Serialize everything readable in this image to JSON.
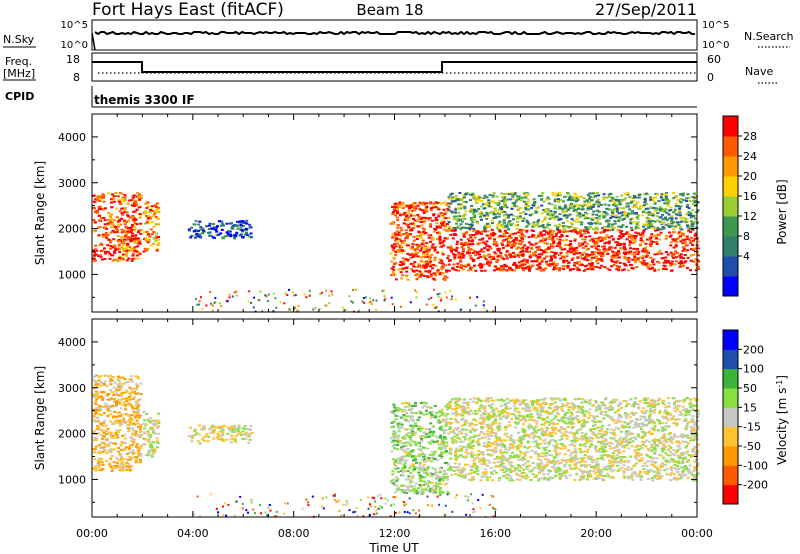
{
  "header": {
    "station": "Fort Hays East (fitACF)",
    "beam": "Beam 18",
    "date": "27/Sep/2011"
  },
  "top_strips": {
    "nsky_label": "N.Sky",
    "nsearch_label": "N.Search",
    "noise_ticks": [
      "10^5",
      "10^0"
    ],
    "freq_label": "Freq.",
    "freq_unit": "[MHz]",
    "freq_ticks": [
      "18",
      "8"
    ],
    "nave_label": "Nave",
    "nave_ticks": [
      "60",
      "0"
    ],
    "cpid_label": "CPID",
    "cpid_text": "themis 3300 IF"
  },
  "colors": {
    "power": [
      "#0000ff",
      "#1f4fa8",
      "#2f7f6a",
      "#3c9a50",
      "#9acd32",
      "#ffd000",
      "#ff9900",
      "#ff5a00",
      "#ff0000"
    ],
    "velocity": [
      "#ff0000",
      "#ff5a00",
      "#ff9900",
      "#ffc233",
      "#c8c8c0",
      "#88e040",
      "#3cb43c",
      "#1f4fa8",
      "#0000ff"
    ]
  },
  "power_colorbar": {
    "title": "Power",
    "unit": "[dB]",
    "ticks": [
      "28",
      "24",
      "20",
      "16",
      "12",
      "8",
      "4"
    ]
  },
  "velocity_colorbar": {
    "title": "Velocity",
    "unit": "[m s",
    "unit_exp": "-1",
    "unit_close": "]",
    "ticks": [
      "200",
      "100",
      "50",
      "15",
      "-15",
      "-50",
      "-100",
      "-200"
    ]
  },
  "axes": {
    "ylabel": "Slant Range [km]",
    "yticks": [
      "4000",
      "3000",
      "2000",
      "1000"
    ],
    "xlabel": "Time UT",
    "xticks": [
      "00:00",
      "04:00",
      "08:00",
      "12:00",
      "16:00",
      "20:00",
      "00:00"
    ]
  },
  "chart_data": [
    {
      "type": "heatmap",
      "name": "power",
      "x_unit": "hours UT",
      "y_unit": "km",
      "xlim": [
        0,
        24
      ],
      "ylim": [
        180,
        4500
      ],
      "colorbar_range_db": [
        0,
        30
      ],
      "regions": [
        {
          "t": [
            0.0,
            1.9
          ],
          "r": [
            1300,
            2800
          ],
          "power_db": 26
        },
        {
          "t": [
            2.0,
            2.6
          ],
          "r": [
            1500,
            2600
          ],
          "power_db": 22
        },
        {
          "t": [
            3.8,
            6.3
          ],
          "r": [
            1800,
            2200
          ],
          "power_db": 5
        },
        {
          "t": [
            11.8,
            14.1
          ],
          "r": [
            900,
            2600
          ],
          "power_db": 26
        },
        {
          "t": [
            14.1,
            24.0
          ],
          "r": [
            1100,
            2000
          ],
          "power_db": 28
        },
        {
          "t": [
            14.1,
            24.0
          ],
          "r": [
            2000,
            2800
          ],
          "power_db": 12
        }
      ]
    },
    {
      "type": "heatmap",
      "name": "velocity",
      "x_unit": "hours UT",
      "y_unit": "km",
      "xlim": [
        0,
        24
      ],
      "ylim": [
        180,
        4500
      ],
      "colorbar_range_ms": [
        -200,
        200
      ],
      "regions": [
        {
          "t": [
            0.0,
            1.9
          ],
          "r": [
            1200,
            3300
          ],
          "velocity": -50
        },
        {
          "t": [
            2.0,
            2.6
          ],
          "r": [
            1500,
            2500
          ],
          "velocity": 0
        },
        {
          "t": [
            3.8,
            6.3
          ],
          "r": [
            1800,
            2200
          ],
          "velocity": 0
        },
        {
          "t": [
            11.8,
            14.1
          ],
          "r": [
            700,
            2700
          ],
          "velocity": 30
        },
        {
          "t": [
            14.1,
            24.0
          ],
          "r": [
            1000,
            2800
          ],
          "velocity": 0
        }
      ]
    }
  ]
}
